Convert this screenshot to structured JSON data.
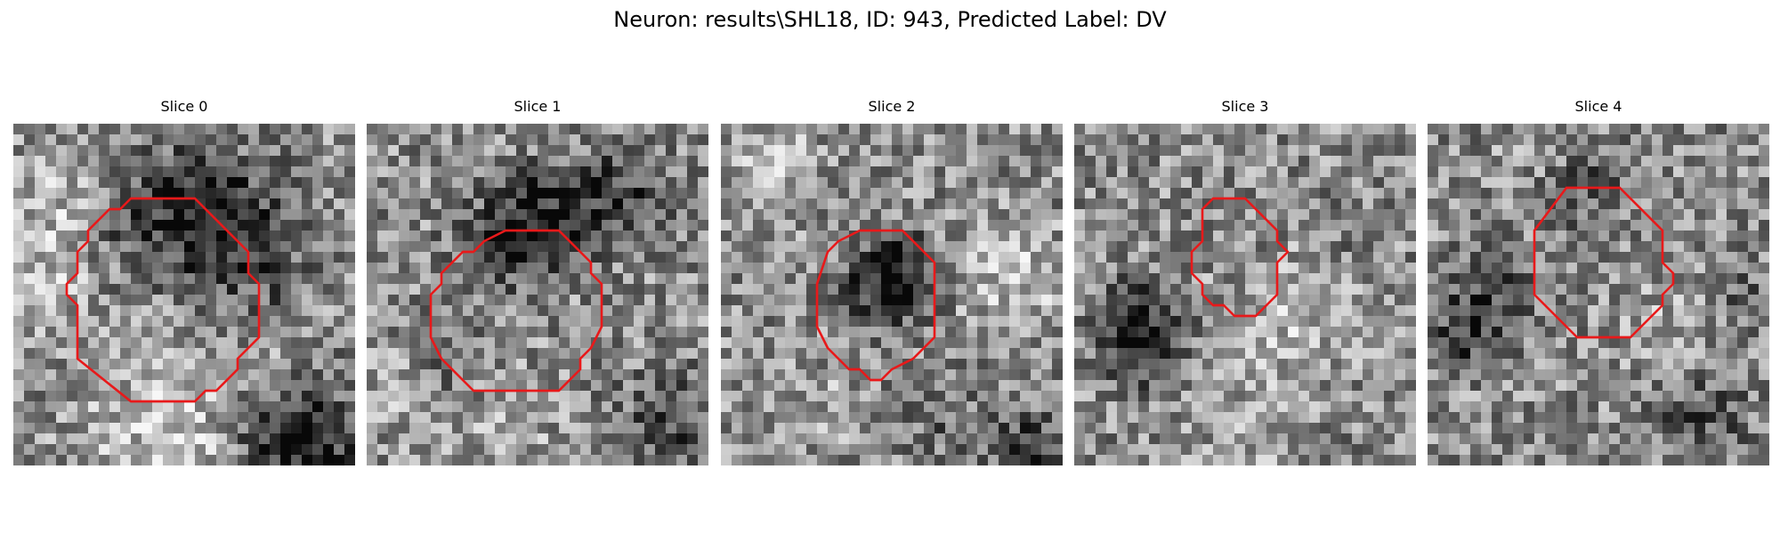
{
  "figure": {
    "title": "Neuron: results\\SHL18, ID: 943, Predicted Label: DV"
  },
  "panels": [
    {
      "title": "Slice 0",
      "seed": 11,
      "contour_color": "#e8191a"
    },
    {
      "title": "Slice 1",
      "seed": 23,
      "contour_color": "#e8191a"
    },
    {
      "title": "Slice 2",
      "seed": 37,
      "contour_color": "#e8191a"
    },
    {
      "title": "Slice 3",
      "seed": 51,
      "contour_color": "#e8191a"
    },
    {
      "title": "Slice 4",
      "seed": 67,
      "contour_color": "#e8191a"
    }
  ],
  "colors": {
    "background": "#ffffff",
    "contour": "#e8191a"
  }
}
